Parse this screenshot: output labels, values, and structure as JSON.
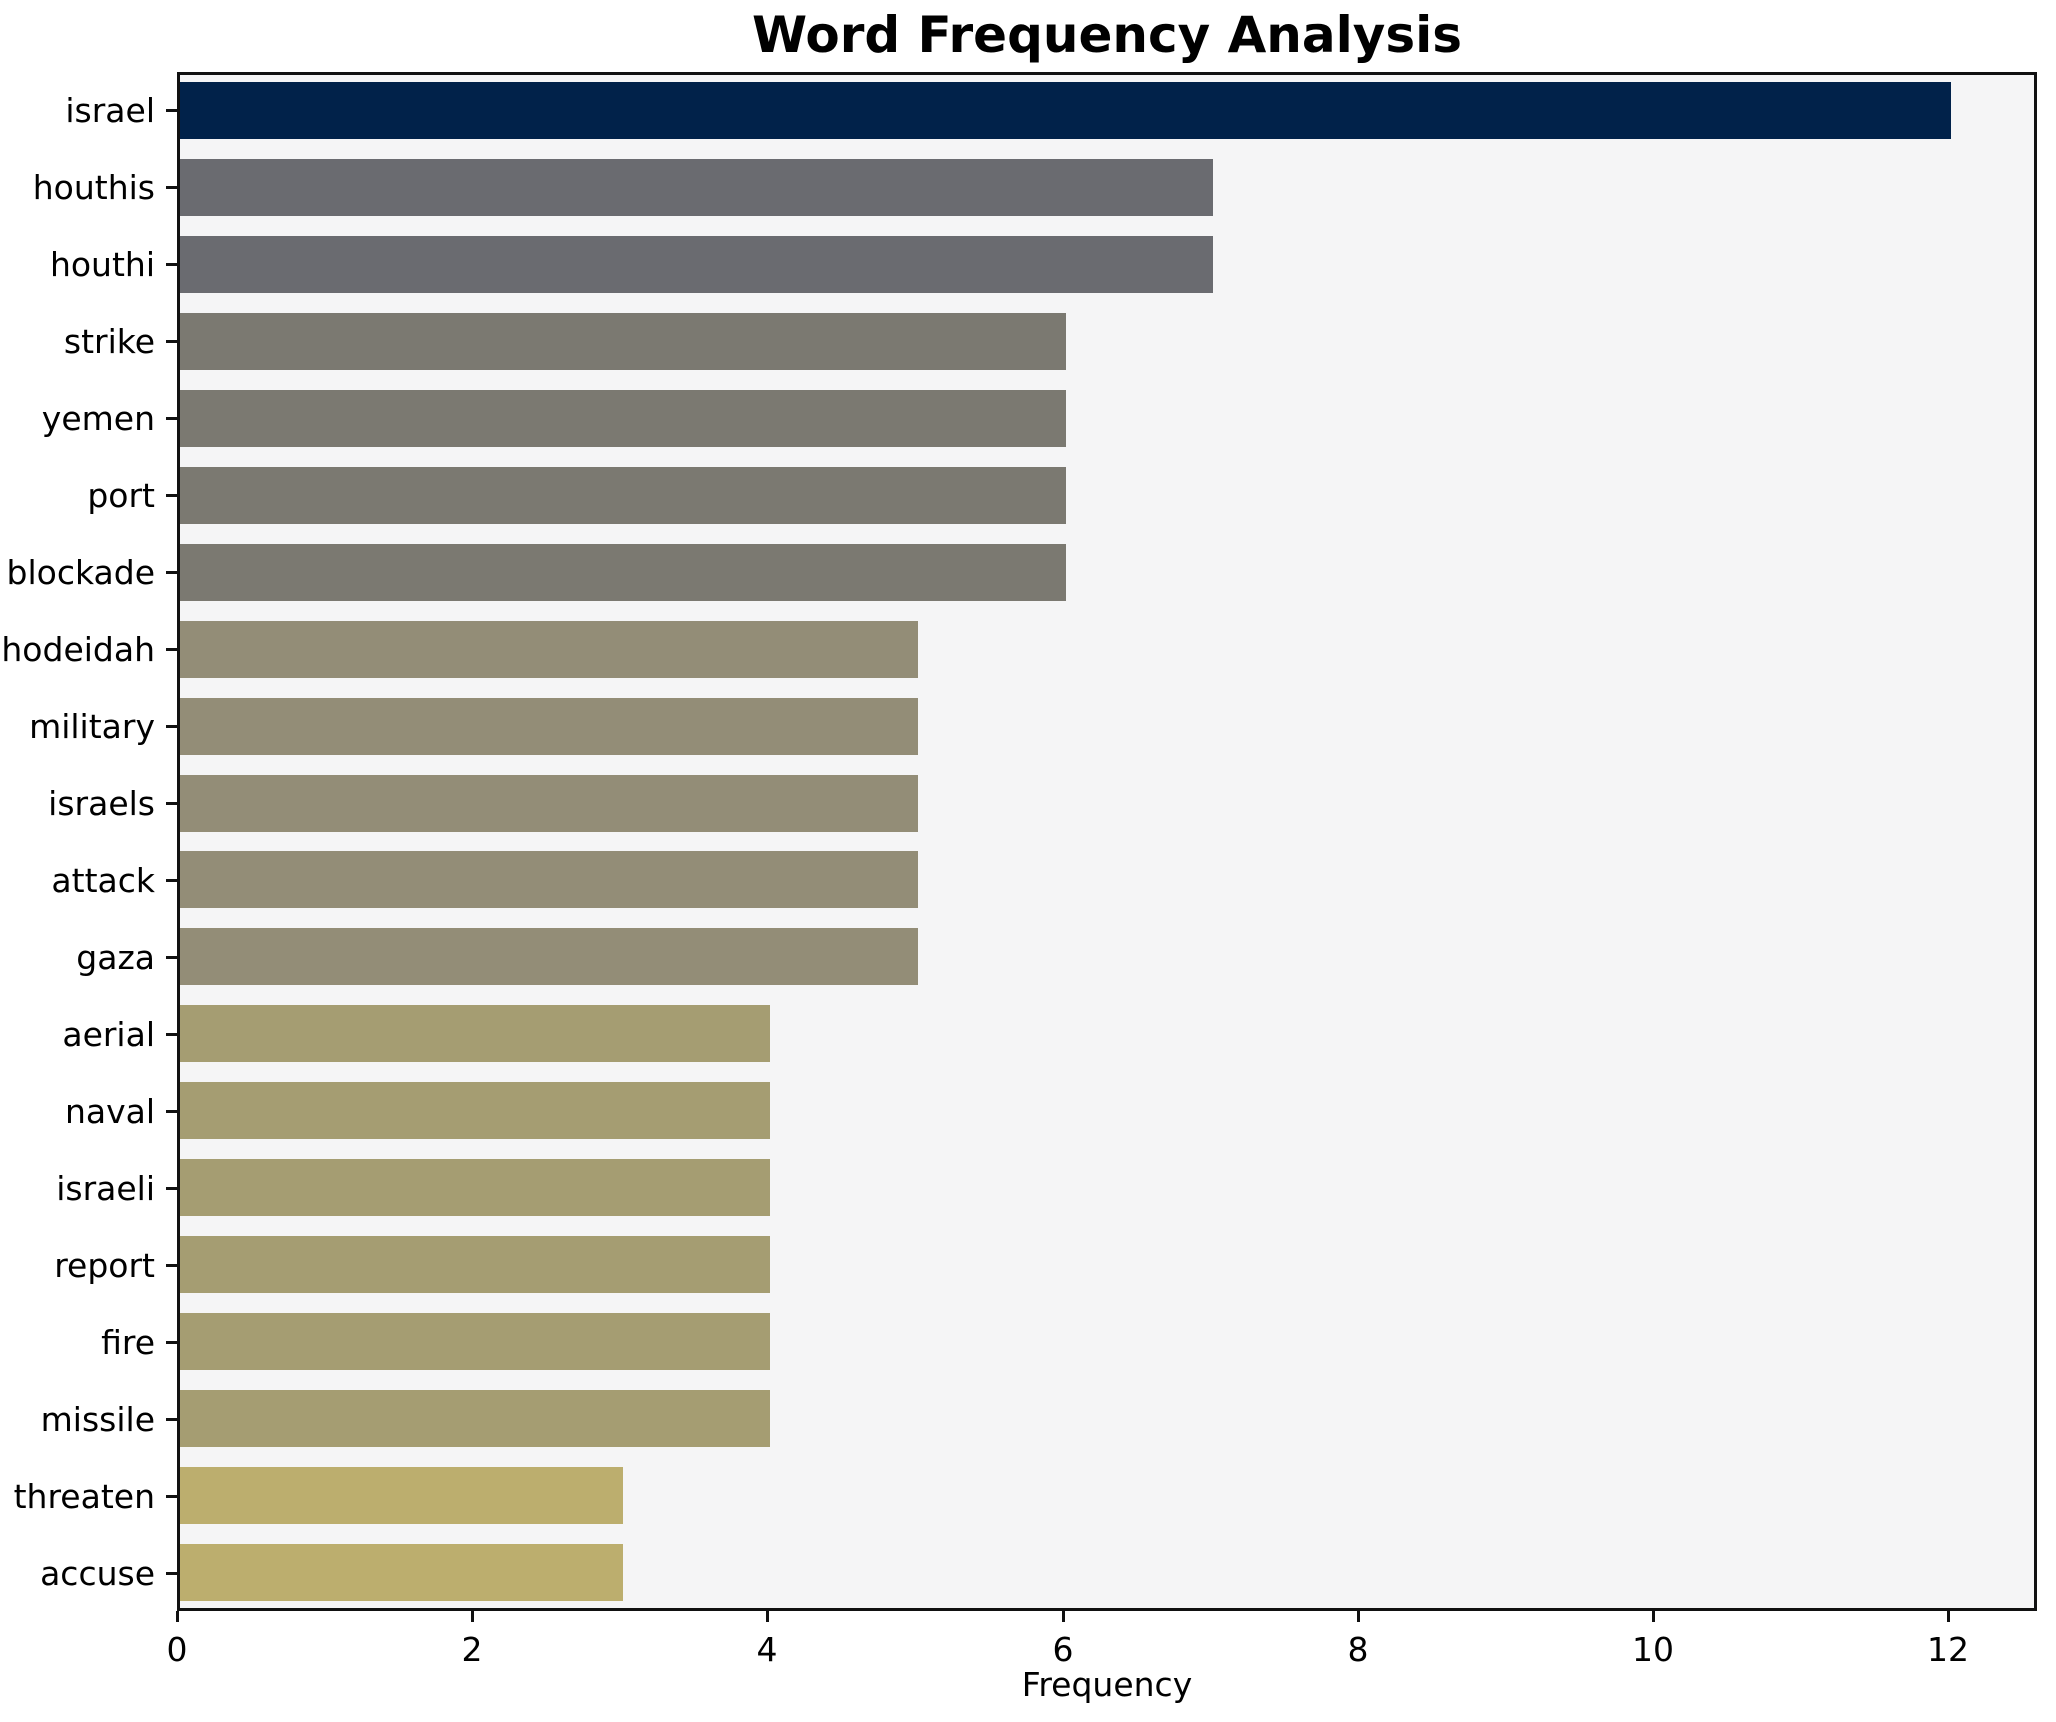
{
  "title": "Word Frequency Analysis",
  "chart_data": {
    "type": "bar",
    "orientation": "horizontal",
    "title": "Word Frequency Analysis",
    "xlabel": "Frequency",
    "ylabel": "",
    "categories": [
      "israel",
      "houthis",
      "houthi",
      "strike",
      "yemen",
      "port",
      "blockade",
      "hodeidah",
      "military",
      "israels",
      "attack",
      "gaza",
      "aerial",
      "naval",
      "israeli",
      "report",
      "fire",
      "missile",
      "threaten",
      "accuse"
    ],
    "values": [
      12,
      7,
      7,
      6,
      6,
      6,
      6,
      5,
      5,
      5,
      5,
      5,
      4,
      4,
      4,
      4,
      4,
      4,
      3,
      3
    ],
    "bar_colors": [
      "#01224a",
      "#6a6b70",
      "#6a6b70",
      "#7b7971",
      "#7b7971",
      "#7b7971",
      "#7b7971",
      "#938d77",
      "#938d77",
      "#938d77",
      "#938d77",
      "#938d77",
      "#a59d72",
      "#a59d72",
      "#a59d72",
      "#a59d72",
      "#a59d72",
      "#a59d72",
      "#bcae6e",
      "#bcae6e"
    ],
    "xlim": [
      0,
      12.6
    ],
    "xticks": [
      0,
      2,
      4,
      6,
      8,
      10,
      12
    ],
    "grid": false,
    "legend": "none",
    "plot_background": "#f5f5f6",
    "figure_background": "#ffffff",
    "axis_color": "#111111"
  }
}
